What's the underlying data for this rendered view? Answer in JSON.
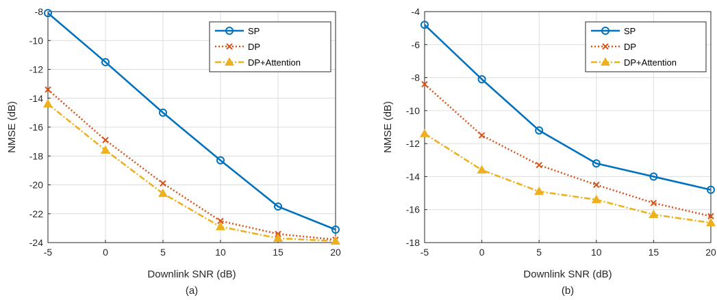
{
  "chart_data": [
    {
      "type": "line",
      "caption": "(a)",
      "xlabel": "Downlink SNR (dB)",
      "ylabel": "NMSE (dB)",
      "x": [
        -5,
        0,
        5,
        10,
        15,
        20
      ],
      "xlim": [
        -5,
        20
      ],
      "ylim": [
        -24,
        -8
      ],
      "xticks": [
        -5,
        0,
        5,
        10,
        15,
        20
      ],
      "yticks": [
        -24,
        -22,
        -20,
        -18,
        -16,
        -14,
        -12,
        -10,
        -8
      ],
      "grid": true,
      "legend_position": "top-right",
      "series": [
        {
          "name": "SP",
          "color": "#0072BD",
          "line": "solid",
          "marker": "circle",
          "values": [
            -8.1,
            -11.5,
            -15.0,
            -18.3,
            -21.5,
            -23.1
          ]
        },
        {
          "name": "DP",
          "color": "#D95319",
          "line": "dotted",
          "marker": "x",
          "values": [
            -13.4,
            -16.9,
            -19.9,
            -22.5,
            -23.4,
            -23.8
          ]
        },
        {
          "name": "DP+Attention",
          "color": "#EDB120",
          "line": "dashdot",
          "marker": "triangle",
          "values": [
            -14.4,
            -17.6,
            -20.6,
            -22.9,
            -23.7,
            -23.9
          ]
        }
      ]
    },
    {
      "type": "line",
      "caption": "(b)",
      "xlabel": "Downlink SNR (dB)",
      "ylabel": "NMSE (dB)",
      "x": [
        -5,
        0,
        5,
        10,
        15,
        20
      ],
      "xlim": [
        -5,
        20
      ],
      "ylim": [
        -18,
        -4
      ],
      "xticks": [
        -5,
        0,
        5,
        10,
        15,
        20
      ],
      "yticks": [
        -18,
        -16,
        -14,
        -12,
        -10,
        -8,
        -6,
        -4
      ],
      "grid": true,
      "legend_position": "top-right",
      "series": [
        {
          "name": "SP",
          "color": "#0072BD",
          "line": "solid",
          "marker": "circle",
          "values": [
            -4.8,
            -8.1,
            -11.2,
            -13.2,
            -14.0,
            -14.8
          ]
        },
        {
          "name": "DP",
          "color": "#D95319",
          "line": "dotted",
          "marker": "x",
          "values": [
            -8.4,
            -11.5,
            -13.3,
            -14.5,
            -15.6,
            -16.4
          ]
        },
        {
          "name": "DP+Attention",
          "color": "#EDB120",
          "line": "dashdot",
          "marker": "triangle",
          "values": [
            -11.4,
            -13.6,
            -14.9,
            -15.4,
            -16.3,
            -16.8
          ]
        }
      ]
    }
  ]
}
